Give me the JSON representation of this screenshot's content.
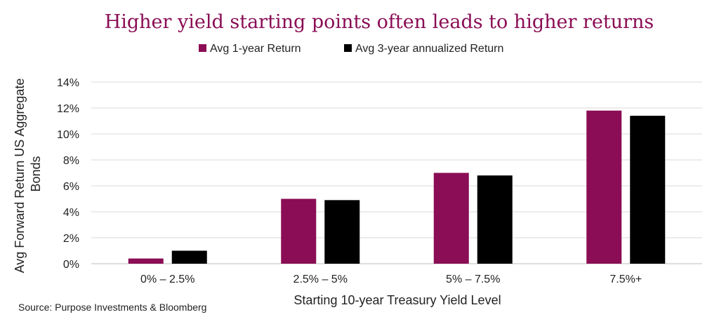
{
  "chart_data": {
    "type": "bar",
    "title": "Higher yield starting points often leads to higher returns",
    "xlabel": "Starting 10-year Treasury Yield Level",
    "ylabel": "Avg Forward Return US Aggregate Bonds",
    "categories": [
      "0% – 2.5%",
      "2.5% – 5%",
      "5% – 7.5%",
      "7.5%+"
    ],
    "series": [
      {
        "name": "Avg 1-year Return",
        "values": [
          0.4,
          5.0,
          7.0,
          11.8
        ],
        "color": "#8a0d55"
      },
      {
        "name": "Avg 3-year annualized Return",
        "values": [
          1.0,
          4.9,
          6.8,
          11.4
        ],
        "color": "#000000"
      }
    ],
    "ylim": [
      0,
      14
    ],
    "yticks": [
      "0%",
      "2%",
      "4%",
      "6%",
      "8%",
      "10%",
      "12%",
      "14%"
    ],
    "grid": true,
    "legend": "top",
    "title_color": "#8a0d55"
  },
  "source": "Source: Purpose Investments & Bloomberg"
}
